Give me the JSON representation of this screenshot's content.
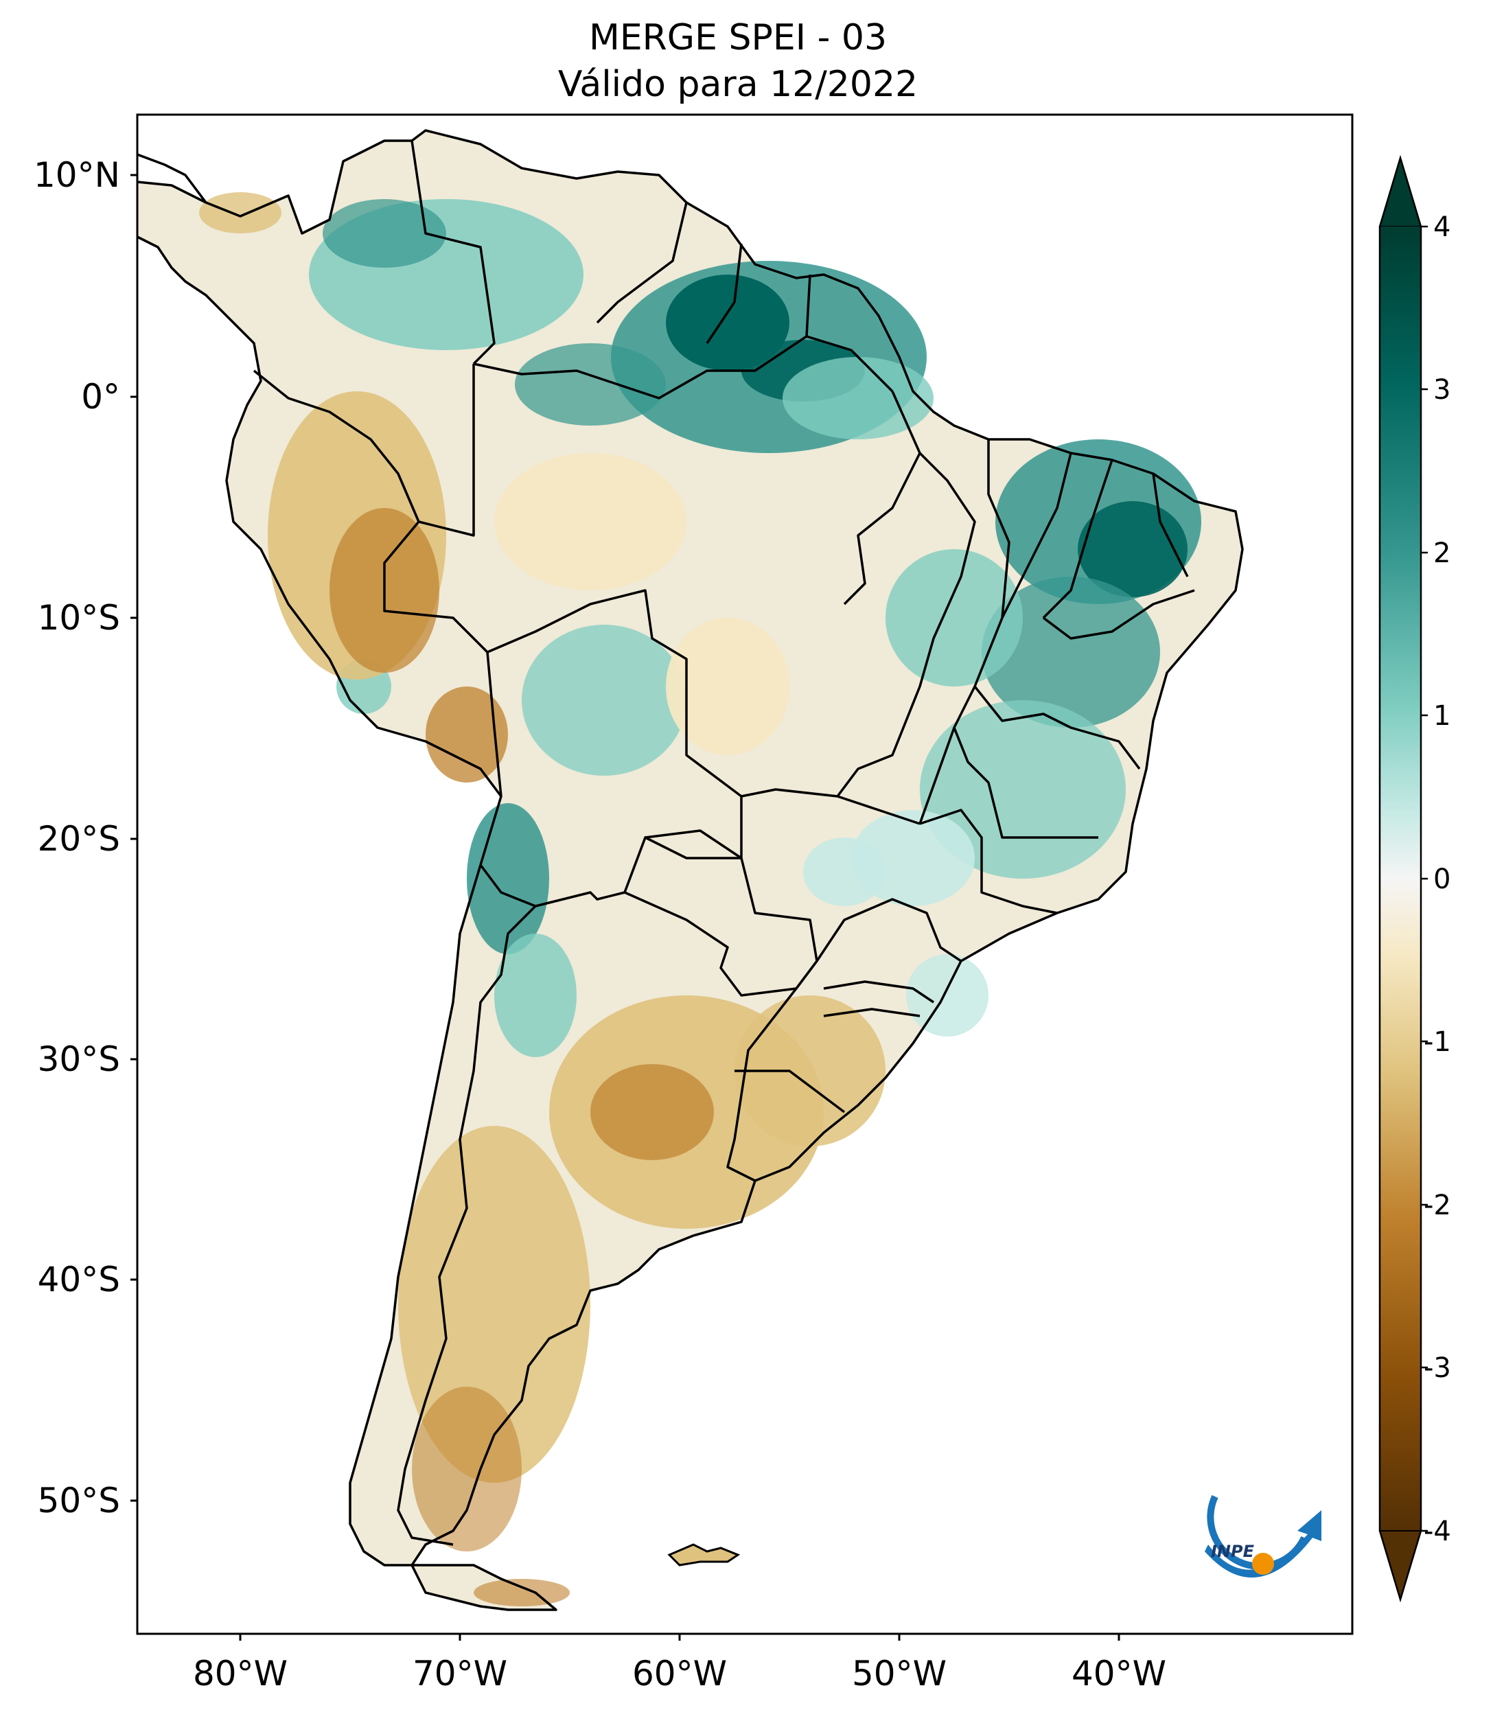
{
  "title": {
    "line1": "MERGE   SPEI - 03",
    "line2": "Válido para 12/2022"
  },
  "lat_ticks": [
    "10°N",
    "0°",
    "10°S",
    "20°S",
    "30°S",
    "40°S",
    "50°S"
  ],
  "lon_ticks": [
    "80°W",
    "70°W",
    "60°W",
    "50°W",
    "40°W"
  ],
  "colorbar": {
    "ticks": [
      "4",
      "3",
      "2",
      "1",
      "0",
      "-1",
      "-2",
      "-3",
      "-4"
    ],
    "colors": [
      "#003c30",
      "#01665e",
      "#35978f",
      "#80cdc1",
      "#c7eae5",
      "#f5f5f5",
      "#f6e8c3",
      "#dfc27d",
      "#bf812d",
      "#8c510a",
      "#543005"
    ],
    "extend": "both"
  },
  "logo": {
    "text": "INPE"
  }
}
